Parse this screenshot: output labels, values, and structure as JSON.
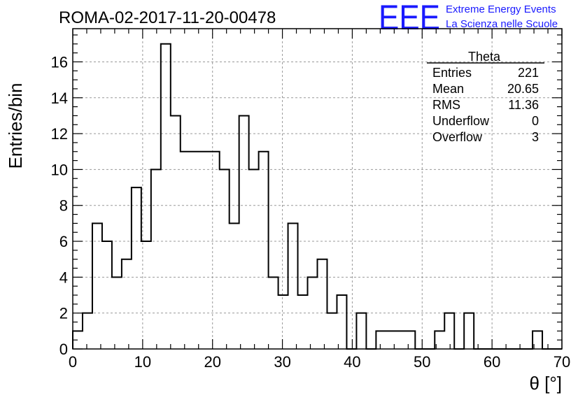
{
  "chart_data": {
    "type": "bar",
    "title": "ROMA-02-2017-11-20-00478",
    "xlabel": "θ [°]",
    "ylabel": "Entries/bin",
    "xlim": [
      0,
      70
    ],
    "ylim": [
      0,
      17.85
    ],
    "x_ticks": [
      0,
      10,
      20,
      30,
      40,
      50,
      60,
      70
    ],
    "y_ticks": [
      0,
      2,
      4,
      6,
      8,
      10,
      12,
      14,
      16
    ],
    "grid": true,
    "bin_width": 1.4,
    "values": [
      1,
      2,
      7,
      6,
      4,
      5,
      9,
      6,
      10,
      17,
      13,
      11,
      11,
      11,
      11,
      10,
      7,
      13,
      10,
      11,
      4,
      3,
      7,
      3,
      4,
      5,
      2,
      3,
      0,
      2,
      0,
      1,
      1,
      1,
      1,
      0,
      0,
      1,
      2,
      0,
      2,
      0,
      0,
      0,
      0,
      0,
      0,
      1,
      0,
      0
    ]
  },
  "stats_box": {
    "title": "Theta",
    "rows": [
      {
        "label": "Entries",
        "value": "221"
      },
      {
        "label": "Mean",
        "value": "20.65"
      },
      {
        "label": "RMS",
        "value": "11.36"
      },
      {
        "label": "Underflow",
        "value": "0"
      },
      {
        "label": "Overflow",
        "value": "3"
      }
    ]
  },
  "logo": {
    "mark": "EEE",
    "line1": "Extreme Energy Events",
    "line2": "La Scienza nelle Scuole",
    "color": "#1a1aff"
  }
}
